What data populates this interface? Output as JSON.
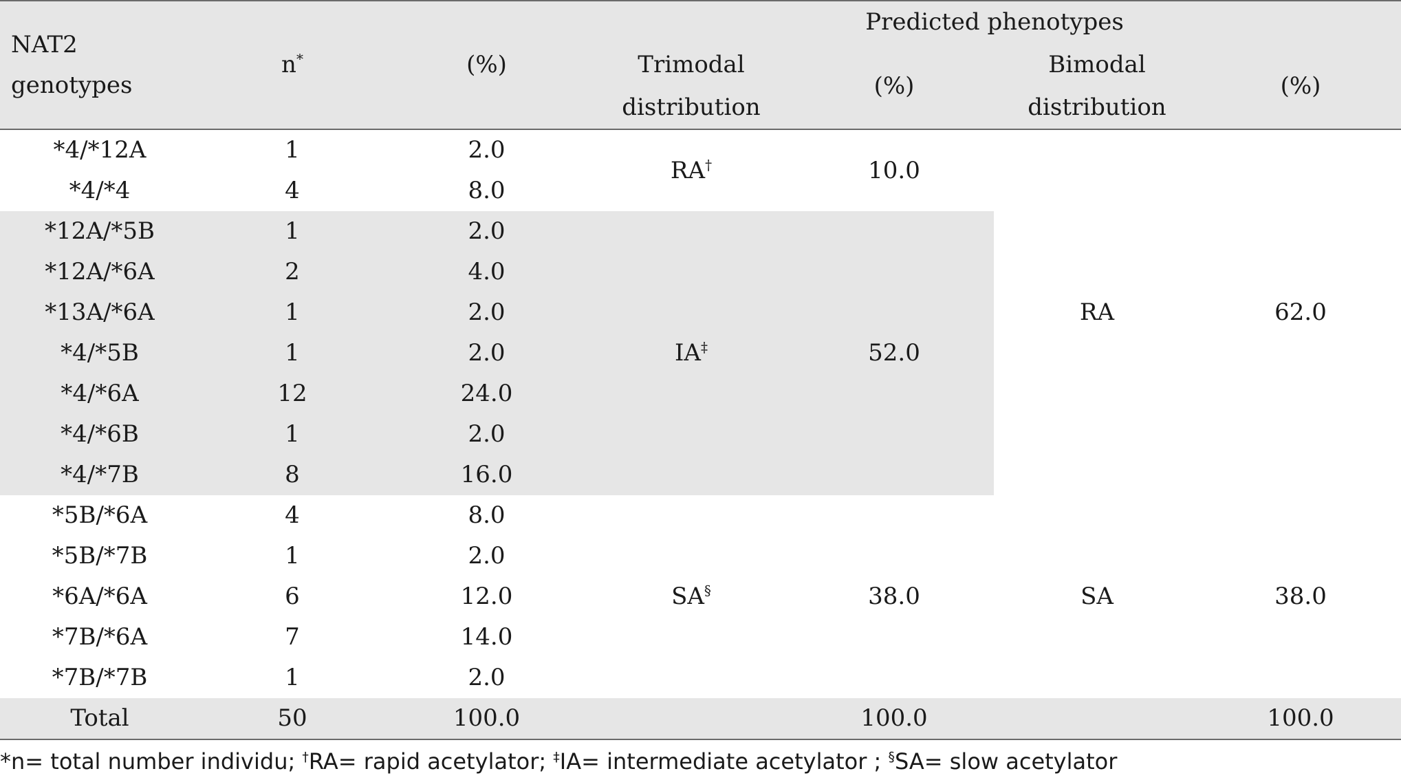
{
  "header": {
    "group": "Predicted phenotypes",
    "col_genotype": "NAT2 genotypes",
    "col_n": "n",
    "col_n_mark": "*",
    "col_pct": "(%)",
    "col_tri_line1": "Trimodal",
    "col_tri_line2": "distribution",
    "col_tri_pct": "(%)",
    "col_bi_line1": "Bimodal",
    "col_bi_line2": "distribution",
    "col_bi_pct": "(%)"
  },
  "rows": [
    {
      "genotype": "*4/*12A",
      "n": "1",
      "pct": "2.0"
    },
    {
      "genotype": "*4/*4",
      "n": "4",
      "pct": "8.0"
    },
    {
      "genotype": "*12A/*5B",
      "n": "1",
      "pct": "2.0"
    },
    {
      "genotype": "*12A/*6A",
      "n": "2",
      "pct": "4.0"
    },
    {
      "genotype": "*13A/*6A",
      "n": "1",
      "pct": "2.0"
    },
    {
      "genotype": "*4/*5B",
      "n": "1",
      "pct": "2.0"
    },
    {
      "genotype": "*4/*6A",
      "n": "12",
      "pct": "24.0"
    },
    {
      "genotype": "*4/*6B",
      "n": "1",
      "pct": "2.0"
    },
    {
      "genotype": "*4/*7B",
      "n": "8",
      "pct": "16.0"
    },
    {
      "genotype": "*5B/*6A",
      "n": "4",
      "pct": "8.0"
    },
    {
      "genotype": "*5B/*7B",
      "n": "1",
      "pct": "2.0"
    },
    {
      "genotype": "*6A/*6A",
      "n": "6",
      "pct": "12.0"
    },
    {
      "genotype": "*7B/*6A",
      "n": "7",
      "pct": "14.0"
    },
    {
      "genotype": "*7B/*7B",
      "n": "1",
      "pct": "2.0"
    }
  ],
  "trimodal": [
    {
      "label": "RA",
      "mark": "†",
      "pct": "10.0"
    },
    {
      "label": "IA",
      "mark": "‡",
      "pct": "52.0"
    },
    {
      "label": "SA",
      "mark": "§",
      "pct": "38.0"
    }
  ],
  "bimodal": [
    {
      "label": "RA",
      "pct": "62.0"
    },
    {
      "label": "SA",
      "pct": "38.0"
    }
  ],
  "total": {
    "label": "Total",
    "n": "50",
    "pct": "100.0",
    "tri_pct": "100.0",
    "bi_pct": "100.0"
  },
  "footnote": {
    "m1": "*",
    "t1": "n= total number individu; ",
    "m2": "†",
    "t2": "RA= rapid acetylator; ",
    "m3": "‡",
    "t3": "IA= intermediate acetylator ; ",
    "m4": "§",
    "t4": "SA= slow acetylator"
  }
}
